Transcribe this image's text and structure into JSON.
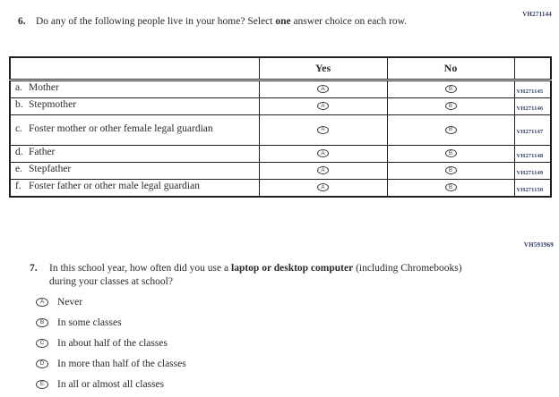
{
  "page": {
    "background": "#ffffff",
    "text_color": "#2b2a28",
    "accession_code_color": "#2e3a66"
  },
  "question6": {
    "code": "VH271144",
    "number": "6.",
    "text_before_bold": "Do any of the following people live in your home? Select ",
    "bold": "one",
    "text_after_bold": " answer choice on each row.",
    "table": {
      "yes_header": "Yes",
      "no_header": "No",
      "rows": [
        {
          "letter": "a.",
          "label": "Mother",
          "yes_bubble": "A",
          "no_bubble": "B",
          "code": "VH271145"
        },
        {
          "letter": "b.",
          "label": "Stepmother",
          "yes_bubble": "A",
          "no_bubble": "B",
          "code": "VH271146"
        },
        {
          "letter": "c.",
          "label": "Foster mother or other female legal guardian",
          "yes_bubble": "A",
          "no_bubble": "B",
          "code": "VH271147"
        },
        {
          "letter": "d.",
          "label": "Father",
          "yes_bubble": "A",
          "no_bubble": "B",
          "code": "VH271148"
        },
        {
          "letter": "e.",
          "label": "Stepfather",
          "yes_bubble": "A",
          "no_bubble": "B",
          "code": "VH271149"
        },
        {
          "letter": "f.",
          "label": "Foster father or other male legal guardian",
          "yes_bubble": "A",
          "no_bubble": "B",
          "code": "VH271150"
        }
      ]
    }
  },
  "question7": {
    "code": "VH591969",
    "number": "7.",
    "text_before_bold": "In this school year, how often did you use a ",
    "bold": "laptop or desktop computer",
    "text_after_bold": " (including Chromebooks) during your classes at school?",
    "options": [
      {
        "bubble": "A",
        "label": "Never"
      },
      {
        "bubble": "B",
        "label": "In some classes"
      },
      {
        "bubble": "C",
        "label": "In about half of the classes"
      },
      {
        "bubble": "D",
        "label": "In more than half of the classes"
      },
      {
        "bubble": "E",
        "label": "In all or almost all classes"
      }
    ]
  }
}
